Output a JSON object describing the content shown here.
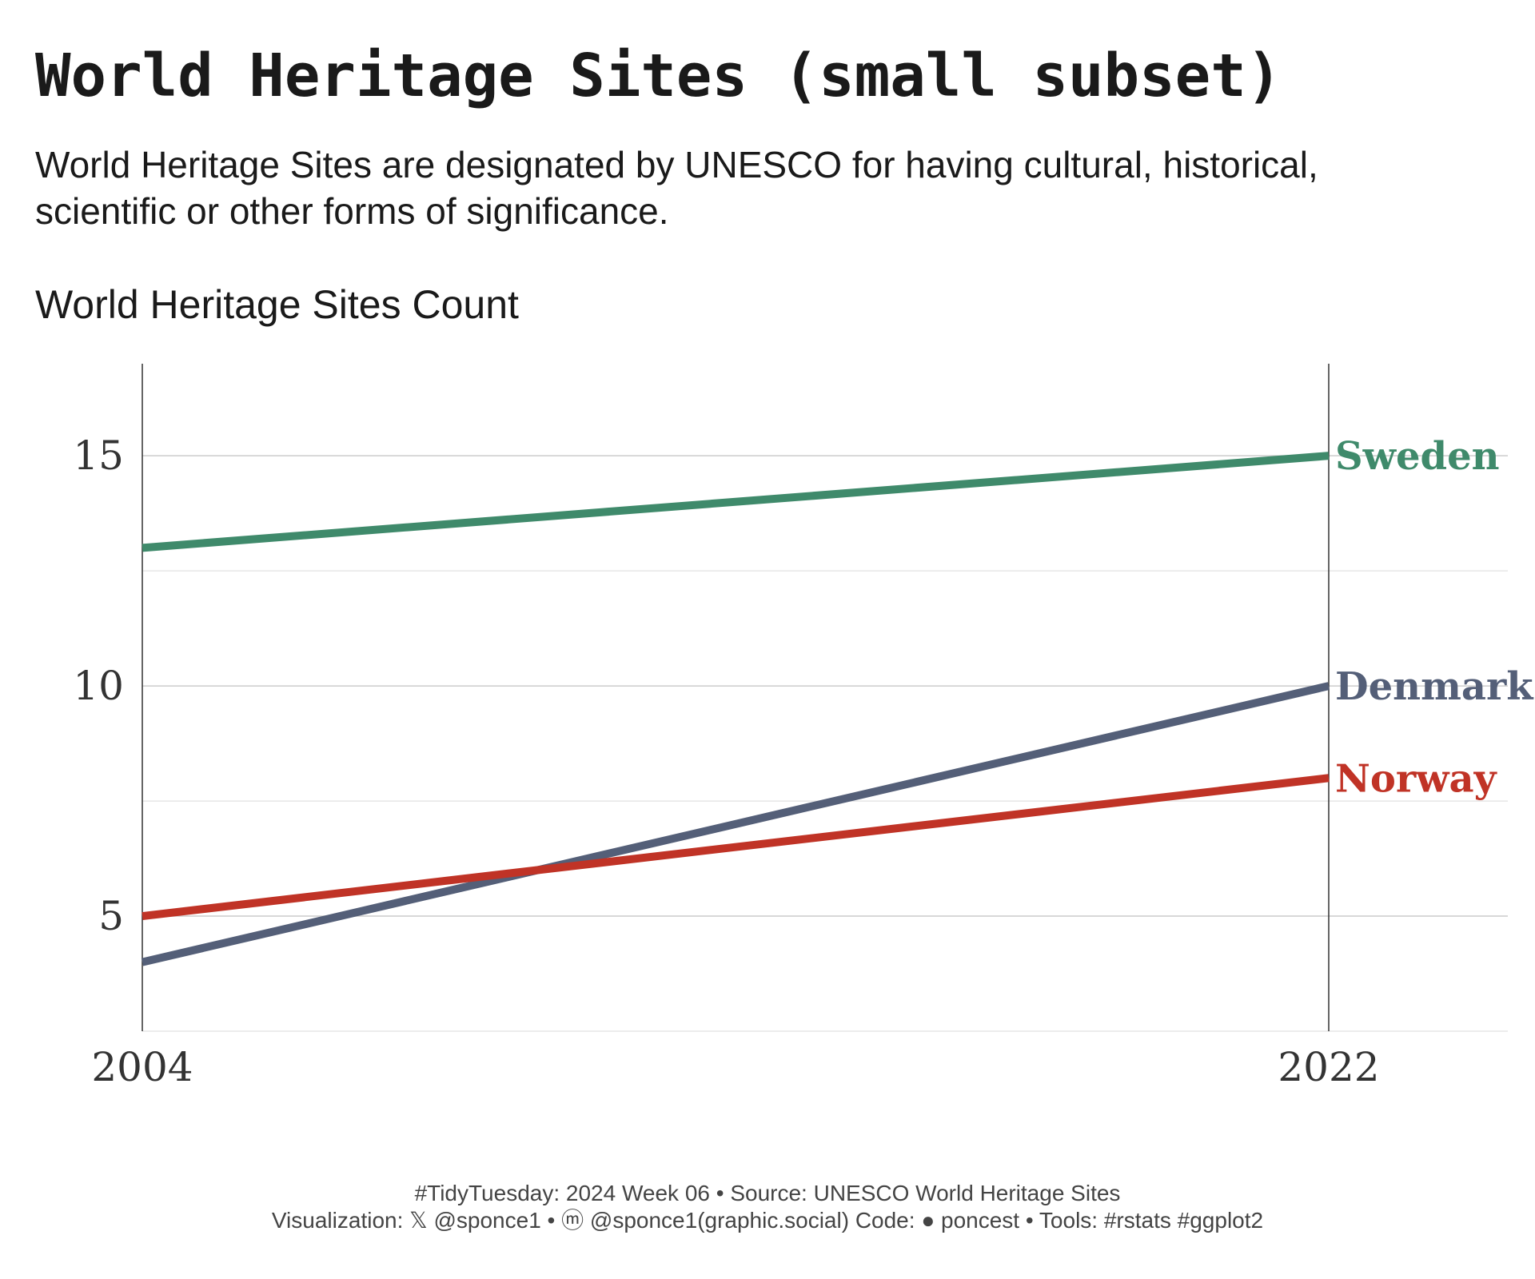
{
  "chart_data": {
    "type": "line",
    "title": "World Heritage Sites (small subset)",
    "subtitle": [
      "World Heritage Sites are designated by UNESCO for having cultural, historical,",
      "scientific or other forms of significance."
    ],
    "ylabel": "World Heritage Sites Count",
    "xlabel": "",
    "x": [
      2004,
      2022
    ],
    "x_ticks": [
      "2004",
      "2022"
    ],
    "y_ticks": [
      "5",
      "10",
      "15"
    ],
    "ylim": [
      2.5,
      17
    ],
    "series": [
      {
        "name": "Sweden",
        "values": [
          13,
          15
        ],
        "color": "#3f8a6b"
      },
      {
        "name": "Denmark",
        "values": [
          4,
          10
        ],
        "color": "#545f78"
      },
      {
        "name": "Norway",
        "values": [
          5,
          8
        ],
        "color": "#c03326"
      }
    ],
    "grid": true,
    "legend": "direct labels at right end of lines"
  },
  "caption": {
    "line1": "#TidyTuesday: 2024 Week 06 • Source: UNESCO World Heritage Sites",
    "line2": "Visualization: 𝕏 @sponce1 • ⓜ @sponce1(graphic.social) Code: ● poncest • Tools: #rstats #ggplot2"
  }
}
